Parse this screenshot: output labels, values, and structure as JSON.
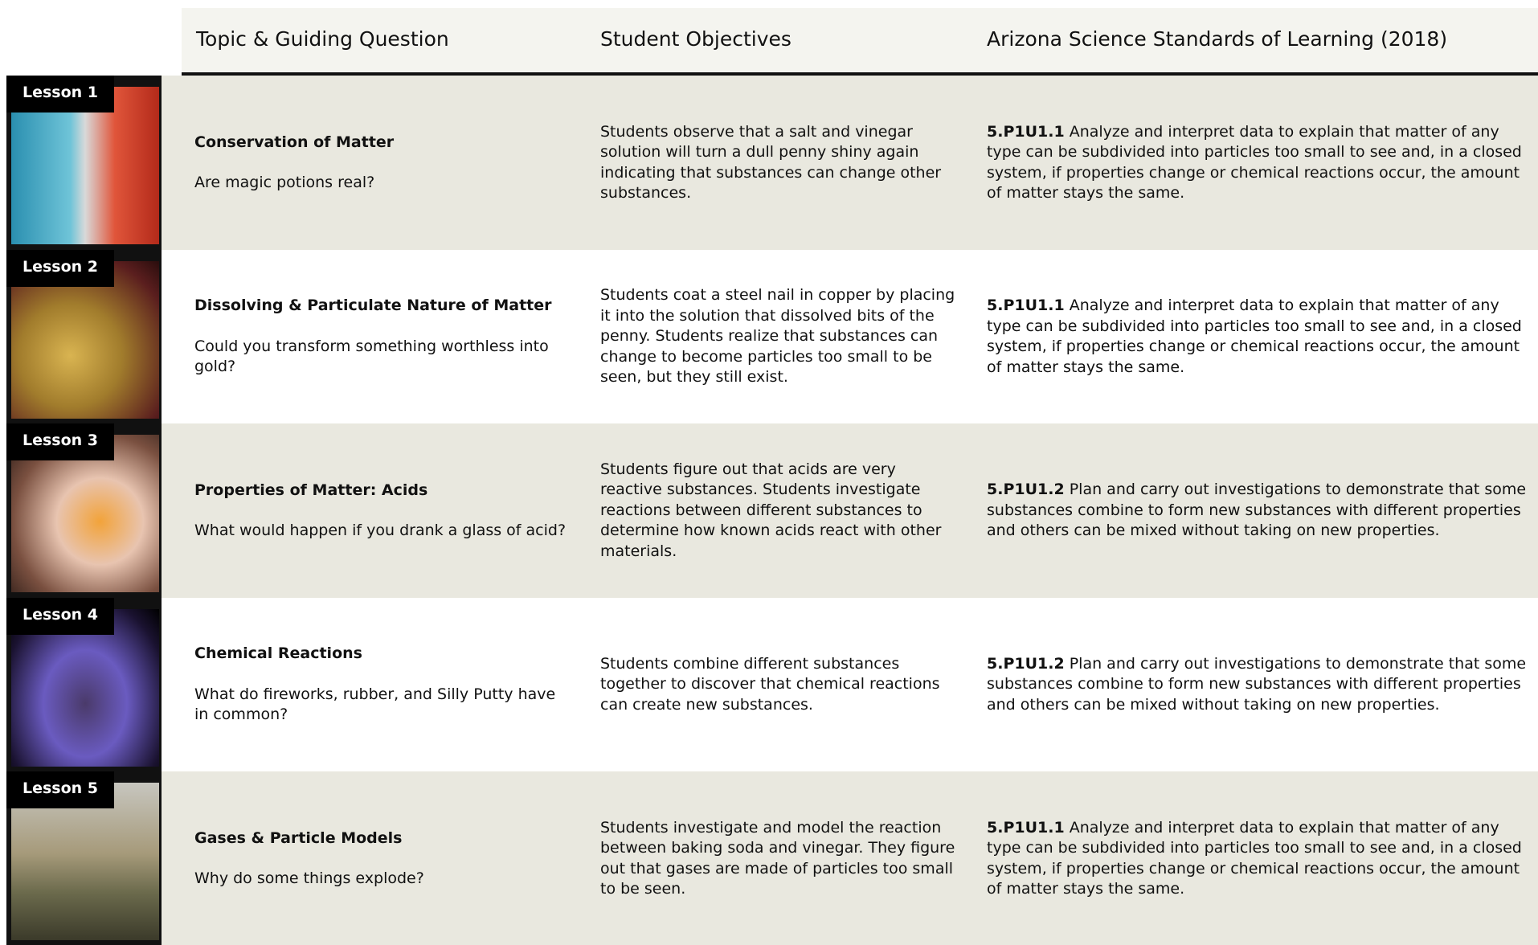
{
  "table": {
    "header": [
      "Topic & Guiding Question",
      "Student Objectives",
      "Arizona Science Standards of Learning (2018)"
    ],
    "rows": [
      {
        "lesson": "Lesson 1",
        "title": "Conservation of Matter",
        "question": "Are magic potions real?",
        "objective": "Students observe that a salt and vinegar solution will turn a dull penny shiny again indicating that substances can change other substances.",
        "standard_code": "5.P1U1.1",
        "standard_text": "Analyze and interpret data to explain that matter of any type can be subdivided into particles too small to see and, in a closed system, if properties change or chemical reactions occur, the amount of matter stays the same."
      },
      {
        "lesson": "Lesson 2",
        "title": "Dissolving & Particulate Nature of Matter",
        "question": "Could you transform something worthless into gold?",
        "objective": "Students coat a steel nail in copper by placing it into the solution that dissolved bits of the penny. Students realize that substances can change to become particles too small to be seen, but they still exist.",
        "standard_code": "5.P1U1.1",
        "standard_text": "Analyze and interpret data to explain that matter of any type can be subdivided into particles too small to see and, in a closed system, if properties change or chemical reactions occur, the amount of matter stays the same."
      },
      {
        "lesson": "Lesson 3",
        "title": "Properties of Matter: Acids",
        "question": "What would happen if you drank a glass of acid?",
        "objective": "Students figure out that acids are very reactive substances. Students investigate reactions between different substances to determine how known acids react with other materials.",
        "standard_code": "5.P1U1.2",
        "standard_text": "Plan and carry out investigations to demonstrate that some substances combine to form new substances with different properties and others can be mixed without taking on new properties."
      },
      {
        "lesson": "Lesson 4",
        "title": "Chemical Reactions",
        "question": "What do fireworks, rubber, and Silly Putty have in common?",
        "objective": "Students combine different substances together to discover that chemical reactions can create new substances.",
        "standard_code": "5.P1U1.2",
        "standard_text": "Plan and carry out investigations to demonstrate that some substances combine to form new substances with different properties and others can be mixed without taking on new properties."
      },
      {
        "lesson": "Lesson 5",
        "title": "Gases & Particle Models",
        "question": "Why do some things explode?",
        "objective": "Students investigate and model the reaction between baking soda and vinegar. They figure out that gases are made of particles too small to be seen.",
        "standard_code": "5.P1U1.1",
        "standard_text": "Analyze and interpret data to explain that matter of any type can be subdivided into particles too small to see and, in a closed system, if properties change or chemical reactions occur, the amount of matter stays the same."
      }
    ]
  }
}
